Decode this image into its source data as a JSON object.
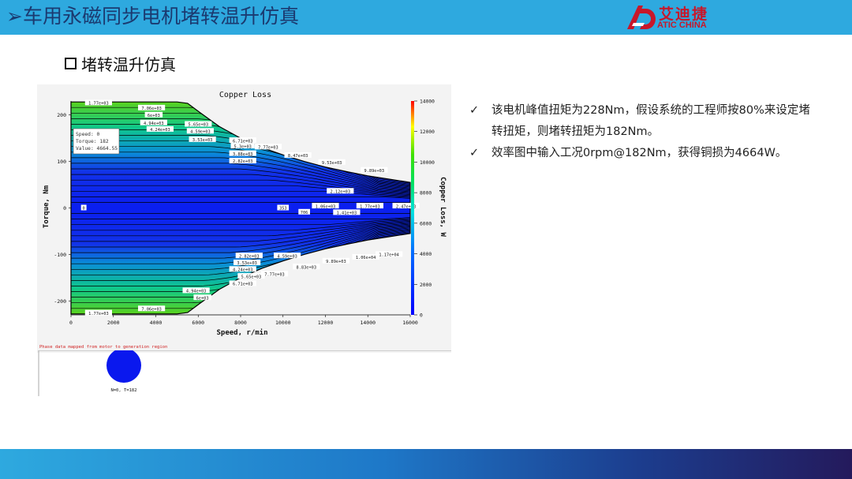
{
  "header": {
    "title": "➢车用永磁同步电机堵转温升仿真",
    "logo_cn": "艾迪捷",
    "logo_en": "ATIC CHINA",
    "accent": "#2ea9df",
    "title_color": "#1b3a70",
    "logo_color": "#c8172a"
  },
  "section": {
    "label": "堵转温升仿真"
  },
  "bullets": [
    {
      "icon": "check-icon",
      "text": "该电机峰值扭矩为228Nm，假设系统的工程师按80%来设定堵转扭矩，则堵转扭矩为182Nm。"
    },
    {
      "icon": "check-icon",
      "text": "效率图中输入工况0rpm@182Nm，获得铜损为4664W。"
    }
  ],
  "chart_data": {
    "type": "heatmap",
    "title": "Copper Loss",
    "xlabel": "Speed, r/min",
    "ylabel": "Torque, Nm",
    "colorbar_label": "Copper Loss, W",
    "xlim": [
      0,
      16000
    ],
    "ylim": [
      -230,
      230
    ],
    "x_ticks": [
      0,
      2000,
      4000,
      6000,
      8000,
      10000,
      12000,
      14000,
      16000
    ],
    "y_ticks": [
      -200,
      -100,
      0,
      100,
      200
    ],
    "colorbar_range": [
      0,
      14000
    ],
    "colorbar_ticks": [
      0,
      2000,
      4000,
      6000,
      8000,
      10000,
      12000,
      14000
    ],
    "envelope": {
      "speed": [
        0,
        1000,
        2000,
        3000,
        4000,
        5000,
        5500,
        6000,
        7000,
        8000,
        9000,
        10000,
        11000,
        12000,
        13000,
        14000,
        15000,
        16000
      ],
      "max_torque": [
        228,
        228,
        228,
        228,
        228,
        228,
        225,
        208,
        175,
        150,
        130,
        114,
        100,
        88,
        78,
        69,
        62,
        55
      ]
    },
    "contour_labels": [
      {
        "text": "1.77e+03",
        "x": 1300,
        "y": 226
      },
      {
        "text": "7.06e+03",
        "x": 3800,
        "y": 215
      },
      {
        "text": "6e+03",
        "x": 3900,
        "y": 200
      },
      {
        "text": "4.94e+03",
        "x": 3900,
        "y": 183
      },
      {
        "text": "4.24e+03",
        "x": 4200,
        "y": 169
      },
      {
        "text": "5.65e+03",
        "x": 6000,
        "y": 180
      },
      {
        "text": "4.59e+03",
        "x": 6100,
        "y": 165
      },
      {
        "text": "3.53e+03",
        "x": 6200,
        "y": 147
      },
      {
        "text": "6.71e+03",
        "x": 8100,
        "y": 145
      },
      {
        "text": "5.3e+03",
        "x": 8100,
        "y": 133
      },
      {
        "text": "7.77e+03",
        "x": 9300,
        "y": 131
      },
      {
        "text": "3.88e+03",
        "x": 8100,
        "y": 117
      },
      {
        "text": "8.47e+03",
        "x": 10700,
        "y": 113
      },
      {
        "text": "2.82e+03",
        "x": 8100,
        "y": 101
      },
      {
        "text": "9.53e+03",
        "x": 12300,
        "y": 98
      },
      {
        "text": "9.89e+03",
        "x": 14300,
        "y": 81
      },
      {
        "text": "2.12e+03",
        "x": 12700,
        "y": 36
      },
      {
        "text": "1.06e+03",
        "x": 12000,
        "y": 4
      },
      {
        "text": "1.77e+03",
        "x": 14100,
        "y": 4
      },
      {
        "text": "2.47e+03",
        "x": 15800,
        "y": 4
      },
      {
        "text": "1.41e+03",
        "x": 13000,
        "y": -10
      },
      {
        "text": "0",
        "x": 600,
        "y": 0
      },
      {
        "text": "353",
        "x": 10000,
        "y": 0
      },
      {
        "text": "706",
        "x": 11000,
        "y": -9
      },
      {
        "text": "2.82e+03",
        "x": 8400,
        "y": -103
      },
      {
        "text": "4.59e+03",
        "x": 10200,
        "y": -103
      },
      {
        "text": "1.17e+04",
        "x": 15000,
        "y": -100
      },
      {
        "text": "1.06e+04",
        "x": 13900,
        "y": -106
      },
      {
        "text": "9.89e+03",
        "x": 12500,
        "y": -114
      },
      {
        "text": "3.53e+03",
        "x": 8300,
        "y": -118
      },
      {
        "text": "8.83e+03",
        "x": 11100,
        "y": -127
      },
      {
        "text": "4.24e+03",
        "x": 8100,
        "y": -132
      },
      {
        "text": "7.77e+03",
        "x": 9600,
        "y": -142
      },
      {
        "text": "5.65e+03",
        "x": 8500,
        "y": -147
      },
      {
        "text": "6.71e+03",
        "x": 8100,
        "y": -163
      },
      {
        "text": "4.94e+03",
        "x": 5900,
        "y": -178
      },
      {
        "text": "6e+03",
        "x": 6200,
        "y": -193
      },
      {
        "text": "7.06e+03",
        "x": 3800,
        "y": -217
      },
      {
        "text": "1.77e+03",
        "x": 1300,
        "y": -226
      }
    ],
    "tooltip": {
      "speed_label": "Speed: 0",
      "torque_label": "Torque: 182",
      "value_label": "Value: 4664.55"
    },
    "note": "Phase data mapped from motor to generation region",
    "operating_point_label": "N=0, T=182"
  }
}
